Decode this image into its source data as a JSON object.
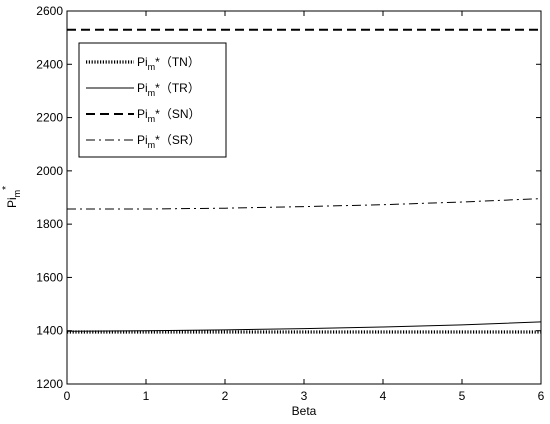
{
  "chart_data": {
    "type": "line",
    "title": "",
    "xlabel": "Beta",
    "ylabel": {
      "base": "Pi",
      "sub": "m",
      "sup": "*"
    },
    "xlim": [
      0,
      6
    ],
    "ylim": [
      1200,
      2600
    ],
    "xticks": [
      0,
      1,
      2,
      3,
      4,
      5,
      6
    ],
    "yticks": [
      1200,
      1400,
      1600,
      1800,
      2000,
      2200,
      2400,
      2600
    ],
    "grid": false,
    "legend_position": "top-left",
    "series": [
      {
        "name": {
          "base": "Pi",
          "sub": "m",
          "rest": "*（TN）"
        },
        "style": "dotted",
        "color": "#000000",
        "x": [
          0,
          1,
          2,
          3,
          4,
          5,
          6
        ],
        "y": [
          1395,
          1395,
          1395,
          1395,
          1395,
          1395,
          1395
        ]
      },
      {
        "name": {
          "base": "Pi",
          "sub": "m",
          "rest": "*（TR）"
        },
        "style": "solid",
        "color": "#000000",
        "x": [
          0,
          1,
          2,
          3,
          4,
          5,
          6
        ],
        "y": [
          1398,
          1400,
          1403,
          1408,
          1414,
          1422,
          1433
        ]
      },
      {
        "name": {
          "base": "Pi",
          "sub": "m",
          "rest": "*（SN）"
        },
        "style": "dashed",
        "color": "#000000",
        "x": [
          0,
          1,
          2,
          3,
          4,
          5,
          6
        ],
        "y": [
          2530,
          2530,
          2530,
          2530,
          2530,
          2530,
          2530
        ]
      },
      {
        "name": {
          "base": "Pi",
          "sub": "m",
          "rest": "*（SR）"
        },
        "style": "dashdot",
        "color": "#000000",
        "x": [
          0,
          1,
          2,
          3,
          4,
          5,
          6
        ],
        "y": [
          1857,
          1857,
          1860,
          1866,
          1873,
          1883,
          1896
        ]
      }
    ]
  }
}
